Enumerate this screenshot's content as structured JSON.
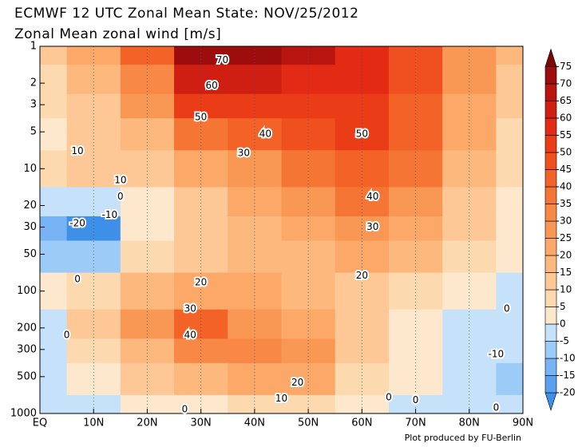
{
  "chart_data": {
    "type": "contour",
    "title": "ECMWF 12 UTC Zonal Mean State: NOV/25/2012",
    "subtitle": "Zonal Mean zonal wind [m/s]",
    "footer": "Plot produced by FU-Berlin",
    "x": [
      0,
      10,
      20,
      30,
      40,
      50,
      60,
      70,
      80,
      90
    ],
    "y": [
      1,
      2,
      3,
      5,
      10,
      20,
      30,
      50,
      100,
      200,
      300,
      500,
      1000
    ],
    "z": [
      [
        12,
        20,
        40,
        72,
        70,
        65,
        55,
        45,
        25,
        15
      ],
      [
        8,
        15,
        30,
        60,
        60,
        58,
        55,
        45,
        25,
        12
      ],
      [
        5,
        12,
        25,
        50,
        52,
        52,
        52,
        42,
        22,
        10
      ],
      [
        3,
        10,
        18,
        35,
        40,
        45,
        50,
        40,
        20,
        8
      ],
      [
        6,
        10,
        14,
        20,
        28,
        35,
        42,
        35,
        18,
        6
      ],
      [
        -3,
        -5,
        3,
        12,
        20,
        25,
        35,
        28,
        14,
        4
      ],
      [
        -15,
        -22,
        0,
        10,
        17,
        20,
        28,
        22,
        10,
        3
      ],
      [
        -8,
        -10,
        8,
        12,
        18,
        18,
        20,
        15,
        7,
        2
      ],
      [
        2,
        5,
        15,
        22,
        22,
        18,
        14,
        8,
        2,
        -1
      ],
      [
        -2,
        10,
        25,
        40,
        28,
        20,
        12,
        4,
        -3,
        -3
      ],
      [
        -4,
        8,
        18,
        30,
        30,
        25,
        10,
        2,
        -5,
        -5
      ],
      [
        -3,
        4,
        10,
        15,
        20,
        20,
        8,
        1,
        -4,
        -6
      ],
      [
        -5,
        -3,
        2,
        3,
        8,
        6,
        2,
        -1,
        -2,
        -2
      ]
    ],
    "xlim": [
      0,
      90
    ],
    "ylim": [
      1000,
      1
    ],
    "log_y": true,
    "grid": true,
    "xticks": [
      {
        "value": 0,
        "label": "EQ"
      },
      {
        "value": 10,
        "label": "10N"
      },
      {
        "value": 20,
        "label": "20N"
      },
      {
        "value": 30,
        "label": "30N"
      },
      {
        "value": 40,
        "label": "40N"
      },
      {
        "value": 50,
        "label": "50N"
      },
      {
        "value": 60,
        "label": "60N"
      },
      {
        "value": 70,
        "label": "70N"
      },
      {
        "value": 80,
        "label": "80N"
      },
      {
        "value": 90,
        "label": "90N"
      }
    ],
    "yticks": [
      1,
      2,
      3,
      5,
      10,
      20,
      30,
      50,
      100,
      200,
      300,
      500,
      1000
    ],
    "colorbar": {
      "levels": [
        -20,
        -15,
        -10,
        -5,
        0,
        5,
        10,
        15,
        20,
        25,
        30,
        35,
        40,
        45,
        50,
        55,
        60,
        65,
        70,
        75
      ],
      "colors": [
        "#3d8fe8",
        "#5aa0ef",
        "#78b4f5",
        "#9dcbf8",
        "#c6e2fb",
        "#fde8cd",
        "#fdd9b0",
        "#fdc896",
        "#fcb87d",
        "#fba868",
        "#f99855",
        "#f78845",
        "#f57534",
        "#f36328",
        "#f0501f",
        "#eb3c18",
        "#e22a14",
        "#cf1f12",
        "#b81510",
        "#9e0d0d",
        "#7a0606"
      ]
    },
    "contour_labels": [
      {
        "x": 34,
        "y": 1.3,
        "value": 70
      },
      {
        "x": 32,
        "y": 2.1,
        "value": 60
      },
      {
        "x": 30,
        "y": 3.8,
        "value": 50
      },
      {
        "x": 42,
        "y": 5.2,
        "value": 40
      },
      {
        "x": 60,
        "y": 5.2,
        "value": 50
      },
      {
        "x": 38,
        "y": 7.5,
        "value": 30
      },
      {
        "x": 7,
        "y": 7.2,
        "value": 10
      },
      {
        "x": 15,
        "y": 12.5,
        "value": 10
      },
      {
        "x": 15,
        "y": 17,
        "value": 0
      },
      {
        "x": 13,
        "y": 24,
        "value": -10
      },
      {
        "x": 7,
        "y": 28,
        "value": -20
      },
      {
        "x": 62,
        "y": 17,
        "value": 40
      },
      {
        "x": 62,
        "y": 30,
        "value": 30
      },
      {
        "x": 60,
        "y": 75,
        "value": 20
      },
      {
        "x": 7,
        "y": 80,
        "value": 0
      },
      {
        "x": 30,
        "y": 85,
        "value": 20
      },
      {
        "x": 28,
        "y": 140,
        "value": 30
      },
      {
        "x": 28,
        "y": 230,
        "value": 40
      },
      {
        "x": 5,
        "y": 230,
        "value": 0
      },
      {
        "x": 48,
        "y": 560,
        "value": 20
      },
      {
        "x": 45,
        "y": 760,
        "value": 10
      },
      {
        "x": 85,
        "y": 330,
        "value": -10
      },
      {
        "x": 87,
        "y": 140,
        "value": 0
      },
      {
        "x": 65,
        "y": 740,
        "value": 0
      },
      {
        "x": 70,
        "y": 780,
        "value": 0
      },
      {
        "x": 85,
        "y": 900,
        "value": 0
      },
      {
        "x": 27,
        "y": 930,
        "value": 0
      }
    ]
  }
}
